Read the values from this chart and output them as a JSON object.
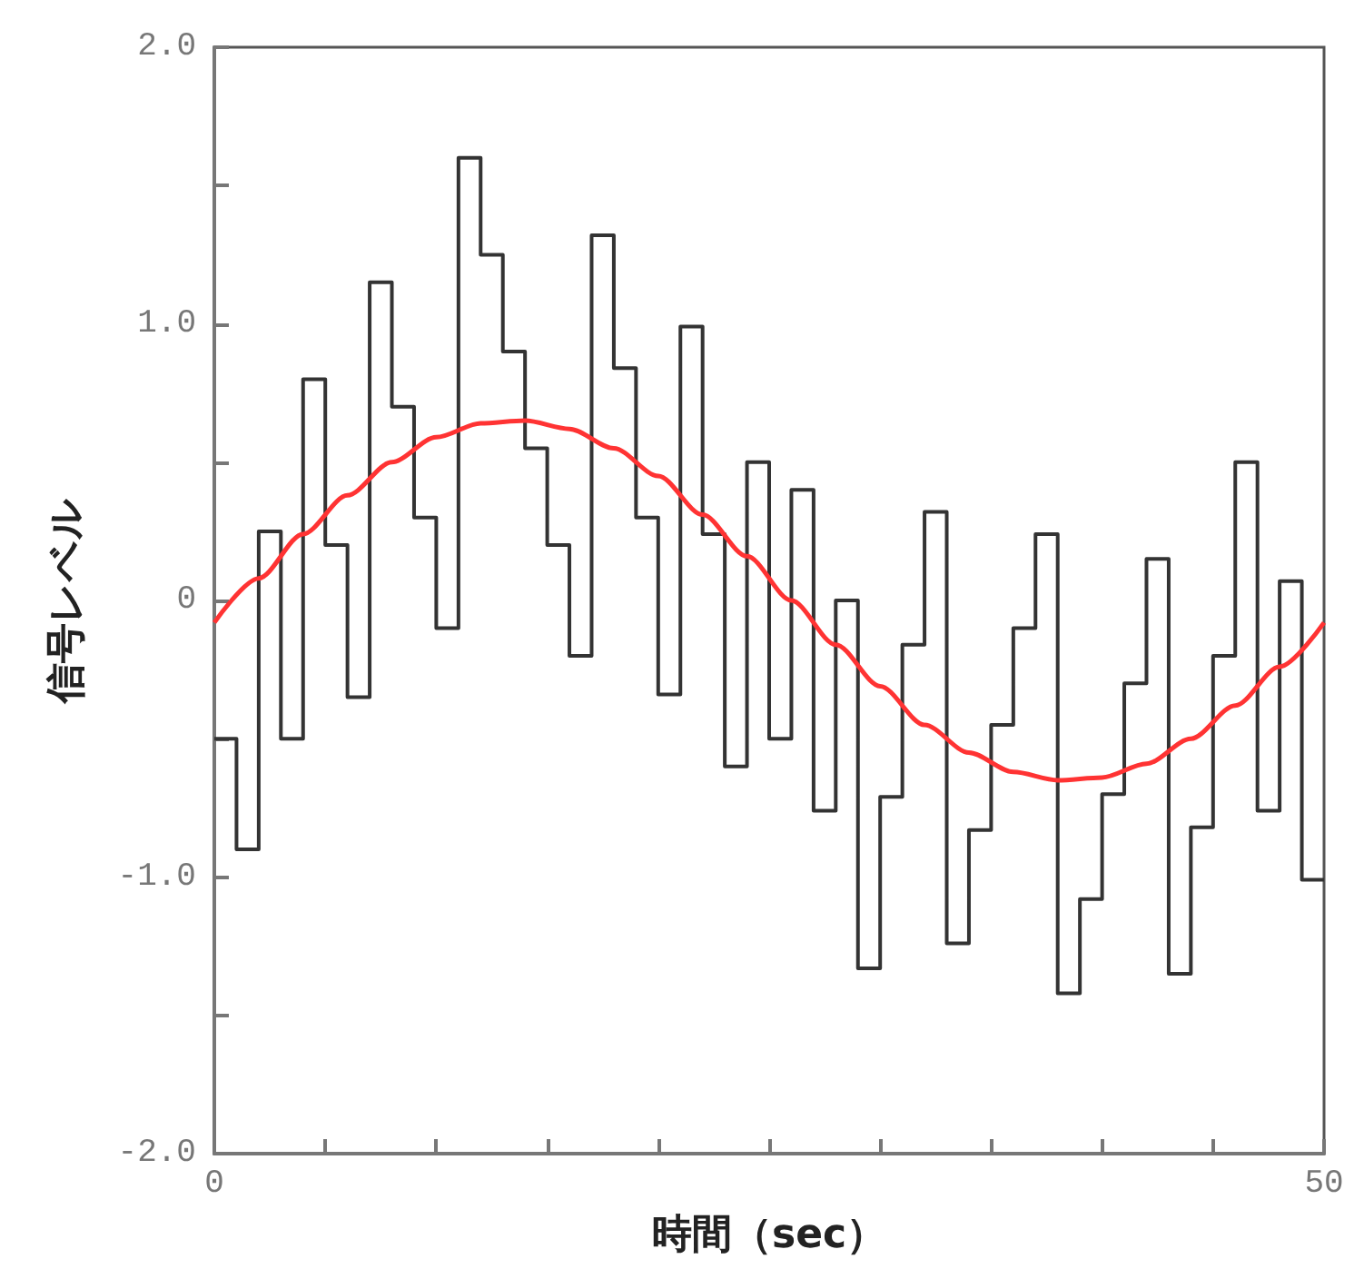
{
  "chart_data": {
    "type": "step",
    "xlabel": "時間（sec）",
    "ylabel": "信号レベル",
    "xlim": [
      0,
      50
    ],
    "ylim": [
      -2,
      2
    ],
    "xticks": [
      0,
      {
        "value": 5,
        "label": null
      },
      {
        "value": 10,
        "label": null
      },
      {
        "value": 15,
        "label": null
      },
      {
        "value": 20,
        "label": null
      },
      {
        "value": 25,
        "label": null
      },
      {
        "value": 30,
        "label": null
      },
      {
        "value": 35,
        "label": null
      },
      {
        "value": 40,
        "label": null
      },
      {
        "value": 45,
        "label": null
      },
      50
    ],
    "yticks": [
      {
        "value": -2,
        "label": "-2.0"
      },
      {
        "value": -1.5,
        "label": null
      },
      {
        "value": -1,
        "label": "-1.0"
      },
      {
        "value": -0.5,
        "label": null
      },
      0,
      {
        "value": 0.5,
        "label": null
      },
      {
        "value": 1,
        "label": "1.0"
      },
      {
        "value": 1.5,
        "label": null
      },
      {
        "value": 2,
        "label": "2.0"
      }
    ],
    "grid": false,
    "series": [
      {
        "color": "#333333",
        "x": [
          0,
          1,
          2,
          3,
          4,
          5,
          6,
          7,
          8,
          9,
          10,
          11,
          12,
          13,
          14,
          15,
          16,
          17,
          18,
          19,
          20,
          21,
          22,
          23,
          24,
          25,
          26,
          27,
          28,
          29,
          30,
          31,
          32,
          33,
          34,
          35,
          36,
          37,
          38,
          39,
          40,
          41,
          42,
          43,
          44,
          45,
          46,
          47,
          48,
          49,
          50
        ],
        "values": [
          -0.5,
          -0.9,
          0.25,
          -0.5,
          0.8,
          0.2,
          -0.35,
          1.15,
          0.7,
          0.3,
          -0.1,
          1.6,
          1.25,
          0.9,
          0.55,
          0.2,
          -0.2,
          1.32,
          0.84,
          0.3,
          -0.34,
          0.99,
          0.24,
          -0.6,
          0.5,
          -0.5,
          0.4,
          -0.76,
          0,
          -1.33,
          -0.71,
          -0.16,
          0.32,
          -1.24,
          -0.83,
          -0.45,
          -0.1,
          0.24,
          -1.42,
          -1.08,
          -0.7,
          -0.3,
          0.15,
          -1.35,
          -0.82,
          -0.2,
          0.5,
          -0.76,
          0.07,
          -1.01,
          -1.01
        ]
      },
      {
        "type": "line",
        "color": "#ff3333",
        "x": [
          0,
          2,
          4,
          6,
          8,
          10,
          12,
          14,
          16,
          18,
          20,
          22,
          24,
          26,
          28,
          30,
          32,
          34,
          36,
          38,
          40,
          42,
          44,
          46,
          48,
          50
        ],
        "values": [
          -0.08,
          0.08,
          0.24,
          0.38,
          0.5,
          0.59,
          0.64,
          0.65,
          0.62,
          0.55,
          0.45,
          0.31,
          0.16,
          0,
          -0.16,
          -0.31,
          -0.45,
          -0.55,
          -0.62,
          -0.65,
          -0.64,
          -0.59,
          -0.5,
          -0.38,
          -0.24,
          -0.08
        ]
      }
    ]
  }
}
